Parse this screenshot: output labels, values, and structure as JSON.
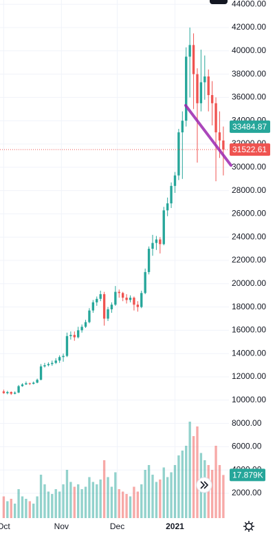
{
  "chart_data": {
    "type": "candlestick",
    "x": [
      1,
      3,
      5,
      7,
      9,
      11,
      13,
      15,
      17,
      19,
      21,
      23,
      25,
      27,
      29,
      31,
      33,
      35,
      37,
      39,
      41,
      43,
      45,
      47,
      49,
      51,
      53,
      55,
      57,
      59,
      61,
      63,
      65,
      67,
      69,
      71,
      73,
      75,
      77,
      79,
      81,
      83,
      85,
      87,
      89,
      91,
      93,
      95,
      97,
      99,
      101,
      103,
      105,
      107,
      109,
      111,
      113,
      115,
      117,
      119
    ],
    "open": [
      10750,
      10600,
      10700,
      10550,
      10650,
      11200,
      11350,
      11450,
      11400,
      11500,
      11750,
      12900,
      13000,
      13100,
      13200,
      13400,
      13700,
      13800,
      15500,
      15600,
      15400,
      16000,
      16300,
      16700,
      17700,
      18400,
      18700,
      19100,
      17000,
      17800,
      18200,
      19300,
      19200,
      18800,
      18600,
      18800,
      18200,
      18000,
      19200,
      21000,
      23000,
      23500,
      23800,
      23400,
      26300,
      26900,
      28400,
      29300,
      33000,
      34000,
      39500,
      40500,
      38000,
      35500,
      37300,
      37800,
      36200,
      35500,
      33000,
      32300
    ],
    "high": [
      10900,
      10800,
      10750,
      10750,
      11300,
      11450,
      11600,
      11500,
      11600,
      11850,
      13100,
      13200,
      13250,
      13400,
      13600,
      13850,
      14000,
      15800,
      15900,
      15900,
      16300,
      16500,
      16900,
      17900,
      18600,
      18900,
      19400,
      19300,
      18000,
      18400,
      19800,
      19500,
      19300,
      19100,
      19000,
      18900,
      18500,
      19400,
      21300,
      23200,
      24200,
      24100,
      24000,
      26600,
      27400,
      28700,
      29600,
      33300,
      34800,
      40300,
      42000,
      41500,
      38500,
      40100,
      39600,
      38400,
      37400,
      36000,
      34800,
      33500
    ],
    "low": [
      10550,
      10500,
      10450,
      10500,
      10600,
      11150,
      11300,
      11300,
      11350,
      11450,
      11700,
      12800,
      12900,
      12950,
      13100,
      13200,
      13300,
      13700,
      15200,
      15100,
      15300,
      15800,
      16200,
      16600,
      17500,
      18100,
      18500,
      16400,
      16800,
      17500,
      18100,
      18800,
      18500,
      18300,
      18400,
      17700,
      17600,
      17900,
      19100,
      20800,
      22400,
      22900,
      22600,
      23300,
      25800,
      26500,
      27800,
      28900,
      29000,
      33500,
      36000,
      35000,
      30400,
      34800,
      35800,
      34800,
      33600,
      28800,
      30800,
      29300
    ],
    "close": [
      10600,
      10700,
      10550,
      10650,
      11200,
      11350,
      11450,
      11400,
      11500,
      11750,
      12900,
      13000,
      13100,
      13200,
      13400,
      13700,
      13800,
      15500,
      15600,
      15400,
      16000,
      16300,
      16700,
      17700,
      18400,
      18700,
      19100,
      17000,
      17800,
      18200,
      19300,
      19200,
      18800,
      18600,
      18800,
      18200,
      18000,
      19200,
      21000,
      23000,
      23500,
      23800,
      23400,
      26300,
      26900,
      28400,
      29300,
      33000,
      34000,
      39500,
      40500,
      38000,
      35500,
      37300,
      37800,
      36200,
      35500,
      33000,
      32300,
      31522.61
    ],
    "volume": [
      9000,
      7000,
      8000,
      6000,
      12000,
      9000,
      8000,
      7000,
      6000,
      9000,
      18000,
      14000,
      11000,
      10000,
      12000,
      11000,
      14000,
      20000,
      15000,
      13000,
      14000,
      12000,
      13000,
      17000,
      15000,
      14000,
      16000,
      24000,
      17000,
      13000,
      19000,
      12000,
      11000,
      10000,
      9000,
      13000,
      11000,
      14000,
      20000,
      22000,
      18000,
      15000,
      16000,
      21000,
      17000,
      19000,
      22000,
      26000,
      28000,
      30000,
      40000,
      34000,
      38000,
      27000,
      24000,
      22000,
      20000,
      30000,
      22000,
      17879
    ],
    "up_color": "#26a69a",
    "down_color": "#ef5350",
    "xlim": [
      -1,
      122
    ],
    "xticks": [
      {
        "value": 1,
        "label": "Oct"
      },
      {
        "value": 32,
        "label": "Nov"
      },
      {
        "value": 62,
        "label": "Dec"
      },
      {
        "value": 93,
        "label": "2021"
      }
    ],
    "ylim": [
      -130,
      44367
    ],
    "yticks": [
      {
        "value": 2000,
        "label": "2000.00"
      },
      {
        "value": 4000,
        "label": "4000.00"
      },
      {
        "value": 6000,
        "label": "6000.00"
      },
      {
        "value": 8000,
        "label": "8000.00"
      },
      {
        "value": 10000,
        "label": "10000.00"
      },
      {
        "value": 12000,
        "label": "12000.00"
      },
      {
        "value": 14000,
        "label": "14000.00"
      },
      {
        "value": 16000,
        "label": "16000.00"
      },
      {
        "value": 18000,
        "label": "18000.00"
      },
      {
        "value": 20000,
        "label": "20000.00"
      },
      {
        "value": 22000,
        "label": "22000.00"
      },
      {
        "value": 24000,
        "label": "24000.00"
      },
      {
        "value": 26000,
        "label": "26000.00"
      },
      {
        "value": 28000,
        "label": "28000.00"
      },
      {
        "value": 30000,
        "label": "30000.00"
      },
      {
        "value": 32000,
        "label": "32000.00"
      },
      {
        "value": 34000,
        "label": "34000.00"
      },
      {
        "value": 36000,
        "label": "36000.00"
      },
      {
        "value": 38000,
        "label": "38000.00"
      },
      {
        "value": 40000,
        "label": "40000.00"
      },
      {
        "value": 42000,
        "label": "42000.00"
      },
      {
        "value": 44000,
        "label": "44000.00"
      }
    ],
    "y2lim": [
      0,
      40000
    ],
    "grid": true,
    "price_tags": [
      {
        "value": 33484.87,
        "color": "#26a69a"
      },
      {
        "value": 31522.61,
        "color": "#ef5350",
        "dotted_line": true
      }
    ],
    "volume_tag": {
      "value": 17879,
      "label": "17.879K",
      "color": "#26a69a"
    }
  }
}
